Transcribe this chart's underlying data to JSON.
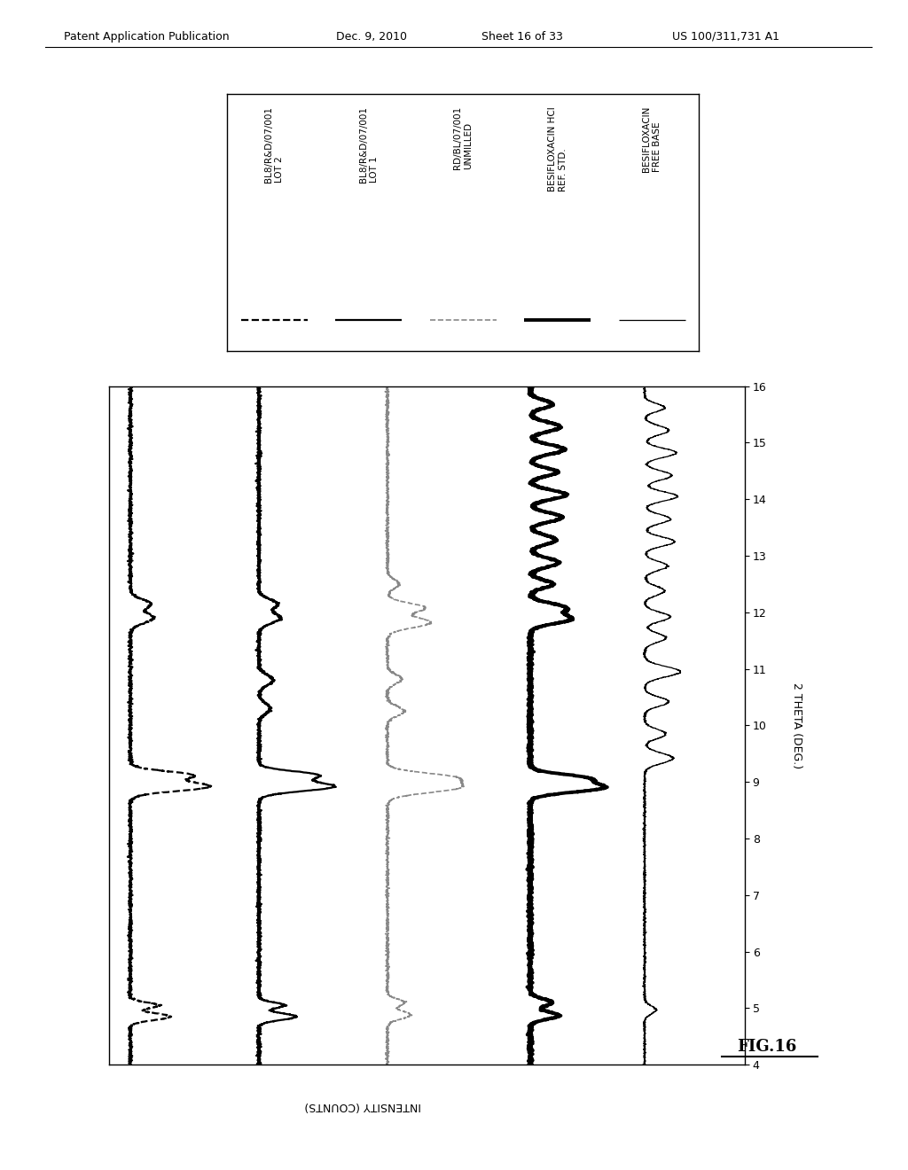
{
  "header_left": "Patent Application Publication",
  "header_mid": "Dec. 9, 2010",
  "header_sheet": "Sheet 16 of 33",
  "header_patent": "US 100/311,731 A1",
  "x_axis_label": "2 THETA (DEG.)",
  "y_axis_label": "INTENSITY (COUNTS)",
  "fig_label": "FIG.16",
  "theta_min": 4,
  "theta_max": 16,
  "theta_ticks": [
    4,
    5,
    6,
    7,
    8,
    9,
    10,
    11,
    12,
    13,
    14,
    15,
    16
  ],
  "legend_entries": [
    {
      "label": "BL8/R&D/07/001\nLOT 2",
      "ls": "--",
      "color": "#000000",
      "lw": 1.6
    },
    {
      "label": "BL8/R&D/07/001\nLOT 1",
      "ls": "-",
      "color": "#000000",
      "lw": 1.6
    },
    {
      "label": "RD/BL/07/001\nUNMILLED",
      "ls": "--",
      "color": "#888888",
      "lw": 1.2
    },
    {
      "label": "BESIFLOXACIN HCl\nREF. STD.",
      "ls": "-",
      "color": "#000000",
      "lw": 2.8
    },
    {
      "label": "BESIFLOXACIN\nFREE BASE",
      "ls": "-",
      "color": "#000000",
      "lw": 0.9
    }
  ],
  "trace_offsets": [
    0,
    9,
    18,
    28,
    36
  ],
  "trace_noise": [
    0.06,
    0.06,
    0.05,
    0.07,
    0.04
  ],
  "trace_noise_seeds": [
    7,
    8,
    9,
    10,
    11
  ],
  "bg_color": "#ffffff"
}
